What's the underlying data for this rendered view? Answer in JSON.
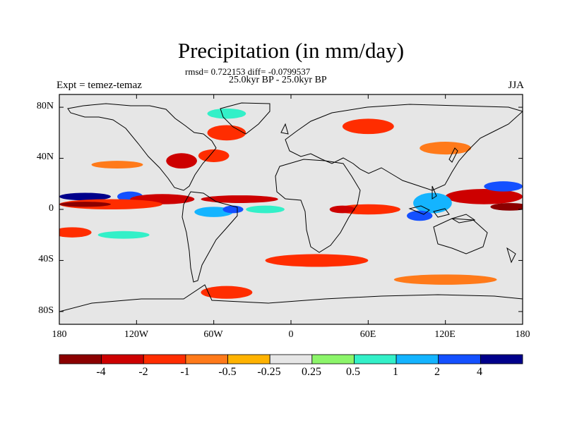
{
  "figure": {
    "title": "Precipitation (in mm/day)",
    "stats": "rmsd= 0.722153 diff= -0.0799537",
    "period": "25.0kyr BP - 25.0kyr BP",
    "experiment": "Expt = temez-temaz",
    "season": "JJA"
  },
  "axes": {
    "x_ticks": [
      "180",
      "120W",
      "60W",
      "0",
      "60E",
      "120E",
      "180"
    ],
    "y_ticks": [
      "80N",
      "40N",
      "0",
      "40S",
      "80S"
    ]
  },
  "colorbar": {
    "labels": [
      "-4",
      "-2",
      "-1",
      "-0.5",
      "-0.25",
      "0.25",
      "0.5",
      "1",
      "2",
      "4"
    ],
    "colors": [
      "#8b0000",
      "#cd0000",
      "#ff2d00",
      "#ff7a1a",
      "#ffb300",
      "#e6e6e6",
      "#8cf56a",
      "#33f0c8",
      "#14b4ff",
      "#1450ff",
      "#00008b"
    ]
  },
  "chart_data": {
    "type": "heatmap",
    "title": "Precipitation (in mm/day)",
    "subtitle": "25.0kyr BP - 25.0kyr BP",
    "projection": "cylindrical equidistant",
    "x_range": [
      -180,
      180
    ],
    "y_range": [
      -90,
      90
    ],
    "levels": [
      -4,
      -2,
      -1,
      -0.5,
      -0.25,
      0.25,
      0.5,
      1,
      2,
      4
    ],
    "background_level_range": [
      -0.25,
      0.25
    ],
    "anomaly_patches": [
      {
        "lon": -160,
        "lat": 10,
        "rlon": 20,
        "rlat": 3,
        "level": 4
      },
      {
        "lon": -125,
        "lat": 10,
        "rlon": 10,
        "rlat": 4,
        "level": 2
      },
      {
        "lon": -100,
        "lat": 8,
        "rlon": 25,
        "rlat": 4,
        "level": -2
      },
      {
        "lon": -140,
        "lat": 4,
        "rlon": 40,
        "rlat": 4,
        "level": -1
      },
      {
        "lon": -160,
        "lat": 4,
        "rlon": 20,
        "rlat": 2,
        "level": -4
      },
      {
        "lon": -40,
        "lat": 8,
        "rlon": 30,
        "rlat": 3,
        "level": -2
      },
      {
        "lon": -20,
        "lat": 0,
        "rlon": 15,
        "rlat": 3,
        "level": 0.5
      },
      {
        "lon": -60,
        "lat": -2,
        "rlon": 15,
        "rlat": 4,
        "level": 1
      },
      {
        "lon": -45,
        "lat": 0,
        "rlon": 8,
        "rlat": 3,
        "level": 2
      },
      {
        "lon": 60,
        "lat": 0,
        "rlon": 25,
        "rlat": 4,
        "level": -1
      },
      {
        "lon": 40,
        "lat": 0,
        "rlon": 10,
        "rlat": 3,
        "level": -2
      },
      {
        "lon": 150,
        "lat": 10,
        "rlon": 30,
        "rlat": 6,
        "level": -2
      },
      {
        "lon": 170,
        "lat": 2,
        "rlon": 15,
        "rlat": 3,
        "level": -4
      },
      {
        "lon": 110,
        "lat": 5,
        "rlon": 15,
        "rlat": 8,
        "level": 1
      },
      {
        "lon": 100,
        "lat": -5,
        "rlon": 10,
        "rlat": 4,
        "level": 2
      },
      {
        "lon": 165,
        "lat": 18,
        "rlon": 15,
        "rlat": 4,
        "level": 2
      },
      {
        "lon": -85,
        "lat": 38,
        "rlon": 12,
        "rlat": 6,
        "level": -2
      },
      {
        "lon": -60,
        "lat": 42,
        "rlon": 12,
        "rlat": 5,
        "level": -1
      },
      {
        "lon": -50,
        "lat": 60,
        "rlon": 15,
        "rlat": 6,
        "level": -1
      },
      {
        "lon": -135,
        "lat": 35,
        "rlon": 20,
        "rlat": 3,
        "level": -0.5
      },
      {
        "lon": 60,
        "lat": 65,
        "rlon": 20,
        "rlat": 6,
        "level": -1
      },
      {
        "lon": 120,
        "lat": 48,
        "rlon": 20,
        "rlat": 5,
        "level": -0.5
      },
      {
        "lon": 20,
        "lat": -40,
        "rlon": 40,
        "rlat": 5,
        "level": -1
      },
      {
        "lon": 120,
        "lat": -55,
        "rlon": 40,
        "rlat": 4,
        "level": -0.5
      },
      {
        "lon": -170,
        "lat": -18,
        "rlon": 15,
        "rlat": 4,
        "level": -1
      },
      {
        "lon": -130,
        "lat": -20,
        "rlon": 20,
        "rlat": 3,
        "level": 0.5
      },
      {
        "lon": -50,
        "lat": -65,
        "rlon": 20,
        "rlat": 5,
        "level": -1
      },
      {
        "lon": -50,
        "lat": 75,
        "rlon": 15,
        "rlat": 4,
        "level": 0.5
      }
    ]
  }
}
